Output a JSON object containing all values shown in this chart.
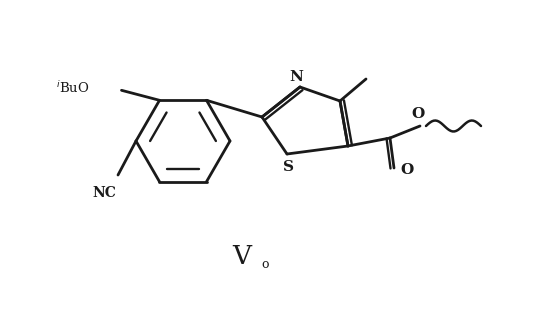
{
  "bg_color": "#ffffff",
  "line_color": "#1a1a1a",
  "line_width": 2.0,
  "fig_width": 5.45,
  "fig_height": 3.09,
  "dpi": 100,
  "label_V": "V",
  "label_dot": "o",
  "label_iBuO": "$^{i}$BuO",
  "label_NC": "NC",
  "label_N": "N",
  "label_S": "S",
  "label_O_ester": "O",
  "label_O_carbonyl": "O"
}
